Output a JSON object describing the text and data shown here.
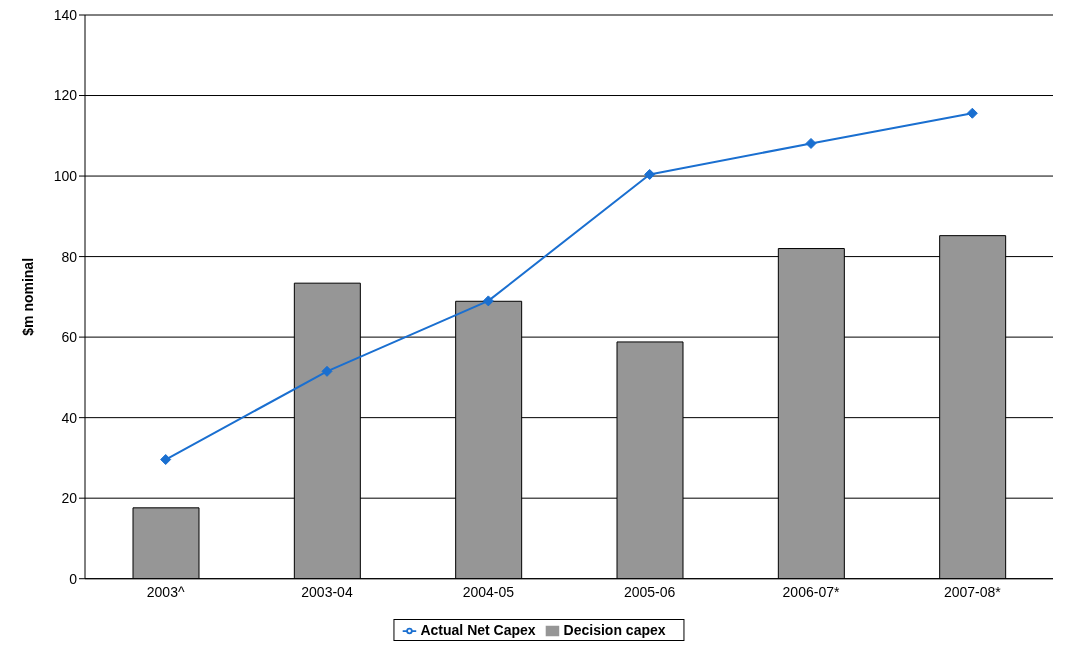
{
  "chart_data": {
    "type": "bar",
    "ylabel": "$m nominal",
    "categories": [
      "2003^",
      "2003-04",
      "2004-05",
      "2005-06",
      "2006-07*",
      "2007-08*"
    ],
    "series": [
      {
        "name": "Decision capex",
        "color": "#969696",
        "values": [
          17.6,
          73.4,
          68.9,
          58.8,
          82,
          85.2
        ]
      },
      {
        "name": "Actual Net Capex",
        "type": "line",
        "color": "#1a6fd0",
        "values": [
          29.6,
          51.5,
          69,
          100.4,
          108.1,
          115.6
        ]
      }
    ],
    "ylim": [
      0,
      140
    ],
    "yticks": [
      0,
      20,
      40,
      60,
      80,
      100,
      120,
      140
    ],
    "grid": "y",
    "legend": "bottom",
    "marker": "diamond",
    "line_style": "solid"
  }
}
